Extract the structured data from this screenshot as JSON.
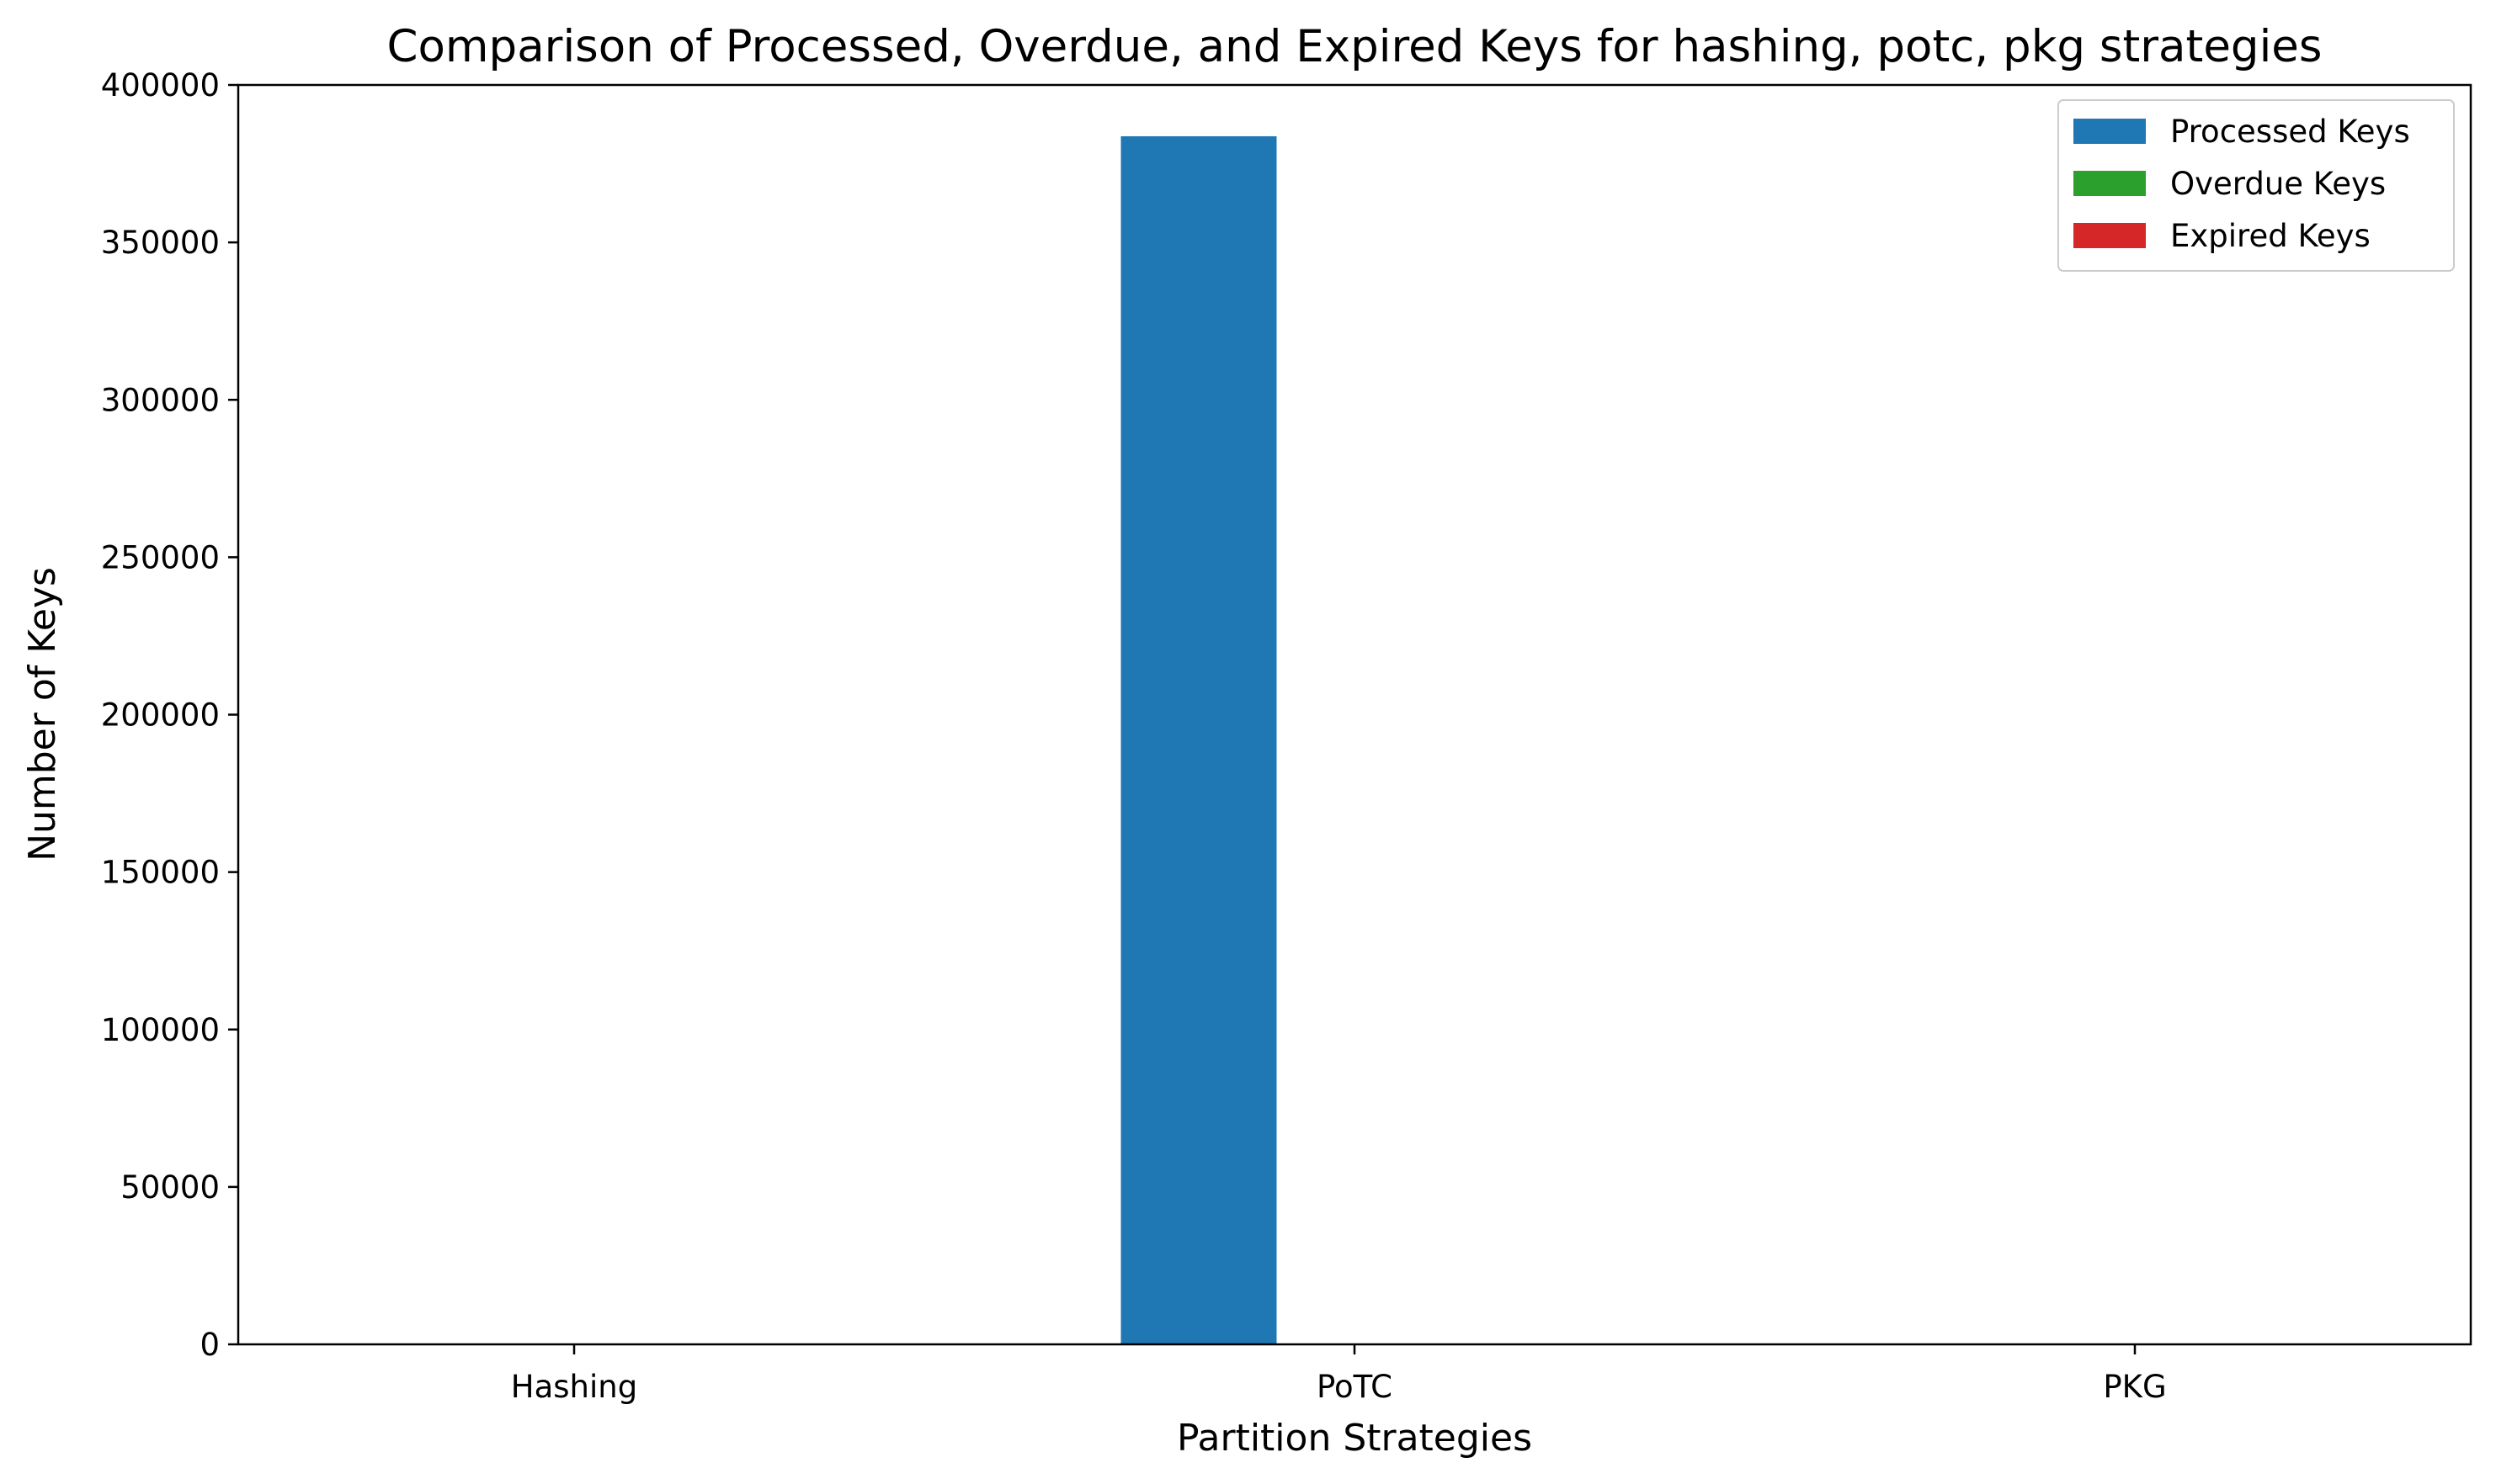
{
  "chart_data": {
    "type": "bar",
    "title": "Comparison of Processed, Overdue, and Expired Keys for hashing, potc, pkg strategies",
    "xlabel": "Partition Strategies",
    "ylabel": "Number of Keys",
    "categories": [
      "Hashing",
      "PoTC",
      "PKG"
    ],
    "series": [
      {
        "name": "Processed Keys",
        "color": "#1f77b4",
        "values": [
          0,
          383700,
          0
        ]
      },
      {
        "name": "Overdue Keys",
        "color": "#2ca02c",
        "values": [
          0,
          0,
          0
        ]
      },
      {
        "name": "Expired Keys",
        "color": "#d62728",
        "values": [
          0,
          0,
          0
        ]
      }
    ],
    "ylim": [
      0,
      400000
    ],
    "yticks": [
      0,
      50000,
      100000,
      150000,
      200000,
      250000,
      300000,
      350000,
      400000
    ],
    "ytick_labels": [
      "0",
      "50000",
      "100000",
      "150000",
      "200000",
      "250000",
      "300000",
      "350000",
      "400000"
    ],
    "grid": false,
    "legend_position": "top-right"
  }
}
